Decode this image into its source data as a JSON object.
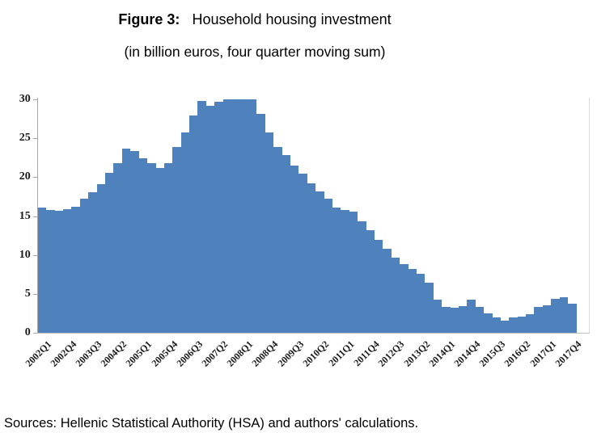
{
  "figure": {
    "title_prefix": "Figure 3:",
    "title_text": "Household housing investment",
    "subtitle": "(in billion euros, four quarter moving sum)",
    "source_note": "Sources: Hellenic Statistical Authority (HSA) and authors' calculations."
  },
  "chart_data": {
    "type": "bar",
    "title": "Figure 3: Household housing investment",
    "subtitle": "(in billion euros, four quarter moving sum)",
    "xlabel": "",
    "ylabel": "",
    "ylim": [
      0,
      30
    ],
    "y_ticks": [
      0,
      5,
      10,
      15,
      20,
      25,
      30
    ],
    "grid": false,
    "legend": "none",
    "bar_color": "#4f81bd",
    "axis_color": "#a6a6a6",
    "categories": [
      "2002Q1",
      "2002Q2",
      "2002Q3",
      "2002Q4",
      "2003Q1",
      "2003Q2",
      "2003Q3",
      "2003Q4",
      "2004Q1",
      "2004Q2",
      "2004Q3",
      "2004Q4",
      "2005Q1",
      "2005Q2",
      "2005Q3",
      "2005Q4",
      "2006Q1",
      "2006Q2",
      "2006Q3",
      "2006Q4",
      "2007Q1",
      "2007Q2",
      "2007Q3",
      "2007Q4",
      "2008Q1",
      "2008Q2",
      "2008Q3",
      "2008Q4",
      "2009Q1",
      "2009Q2",
      "2009Q3",
      "2009Q4",
      "2010Q1",
      "2010Q2",
      "2010Q3",
      "2010Q4",
      "2011Q1",
      "2011Q2",
      "2011Q3",
      "2011Q4",
      "2012Q1",
      "2012Q2",
      "2012Q3",
      "2012Q4",
      "2013Q1",
      "2013Q2",
      "2013Q3",
      "2013Q4",
      "2014Q1",
      "2014Q2",
      "2014Q3",
      "2014Q4",
      "2015Q1",
      "2015Q2",
      "2015Q3",
      "2015Q4",
      "2016Q1",
      "2016Q2",
      "2016Q3",
      "2016Q4",
      "2017Q1",
      "2017Q2",
      "2017Q3",
      "2017Q4"
    ],
    "values": [
      16.1,
      15.8,
      15.7,
      15.9,
      16.2,
      17.2,
      18.1,
      19.1,
      20.6,
      21.8,
      23.7,
      23.4,
      22.4,
      21.8,
      21.2,
      21.8,
      23.9,
      25.8,
      27.9,
      29.8,
      29.2,
      29.7,
      30.0,
      30.0,
      30.0,
      30.0,
      28.2,
      25.8,
      23.9,
      22.9,
      21.5,
      20.5,
      19.2,
      18.2,
      17.2,
      16.1,
      15.8,
      15.6,
      14.3,
      13.2,
      11.9,
      10.8,
      9.6,
      8.8,
      8.2,
      7.6,
      6.4,
      4.2,
      3.3,
      3.2,
      3.4,
      4.2,
      3.3,
      2.5,
      1.9,
      1.5,
      1.9,
      2.1,
      2.4,
      3.3,
      3.5,
      4.3,
      4.5,
      3.7
    ],
    "x_tick_labels": [
      "2002Q1",
      "2002Q4",
      "2003Q3",
      "2004Q2",
      "2005Q1",
      "2005Q4",
      "2006Q3",
      "2007Q2",
      "2008Q1",
      "2008Q4",
      "2009Q3",
      "2010Q2",
      "2011Q1",
      "2011Q4",
      "2012Q3",
      "2013Q2",
      "2014Q1",
      "2014Q4",
      "2015Q3",
      "2016Q2",
      "2017Q1",
      "2017Q4"
    ],
    "x_tick_every": 3
  }
}
